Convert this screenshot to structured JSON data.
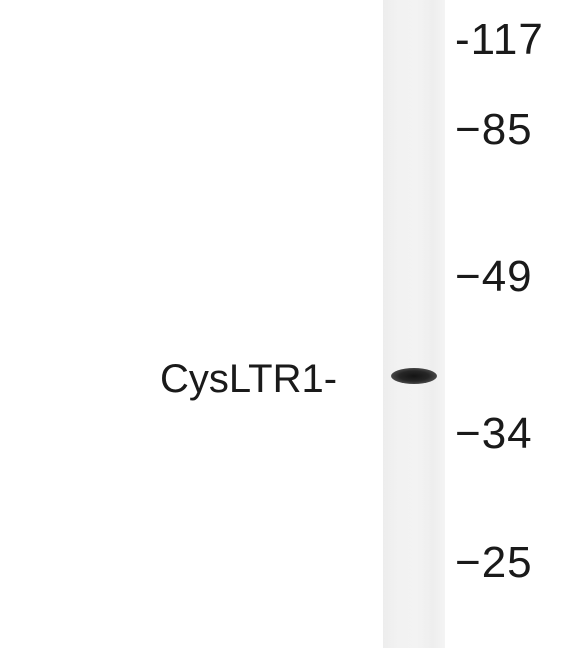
{
  "band_label": "CysLTR1-",
  "markers": [
    {
      "label": "-117"
    },
    {
      "label": "−85"
    },
    {
      "label": "−49"
    },
    {
      "label": "−34"
    },
    {
      "label": "−25"
    }
  ]
}
